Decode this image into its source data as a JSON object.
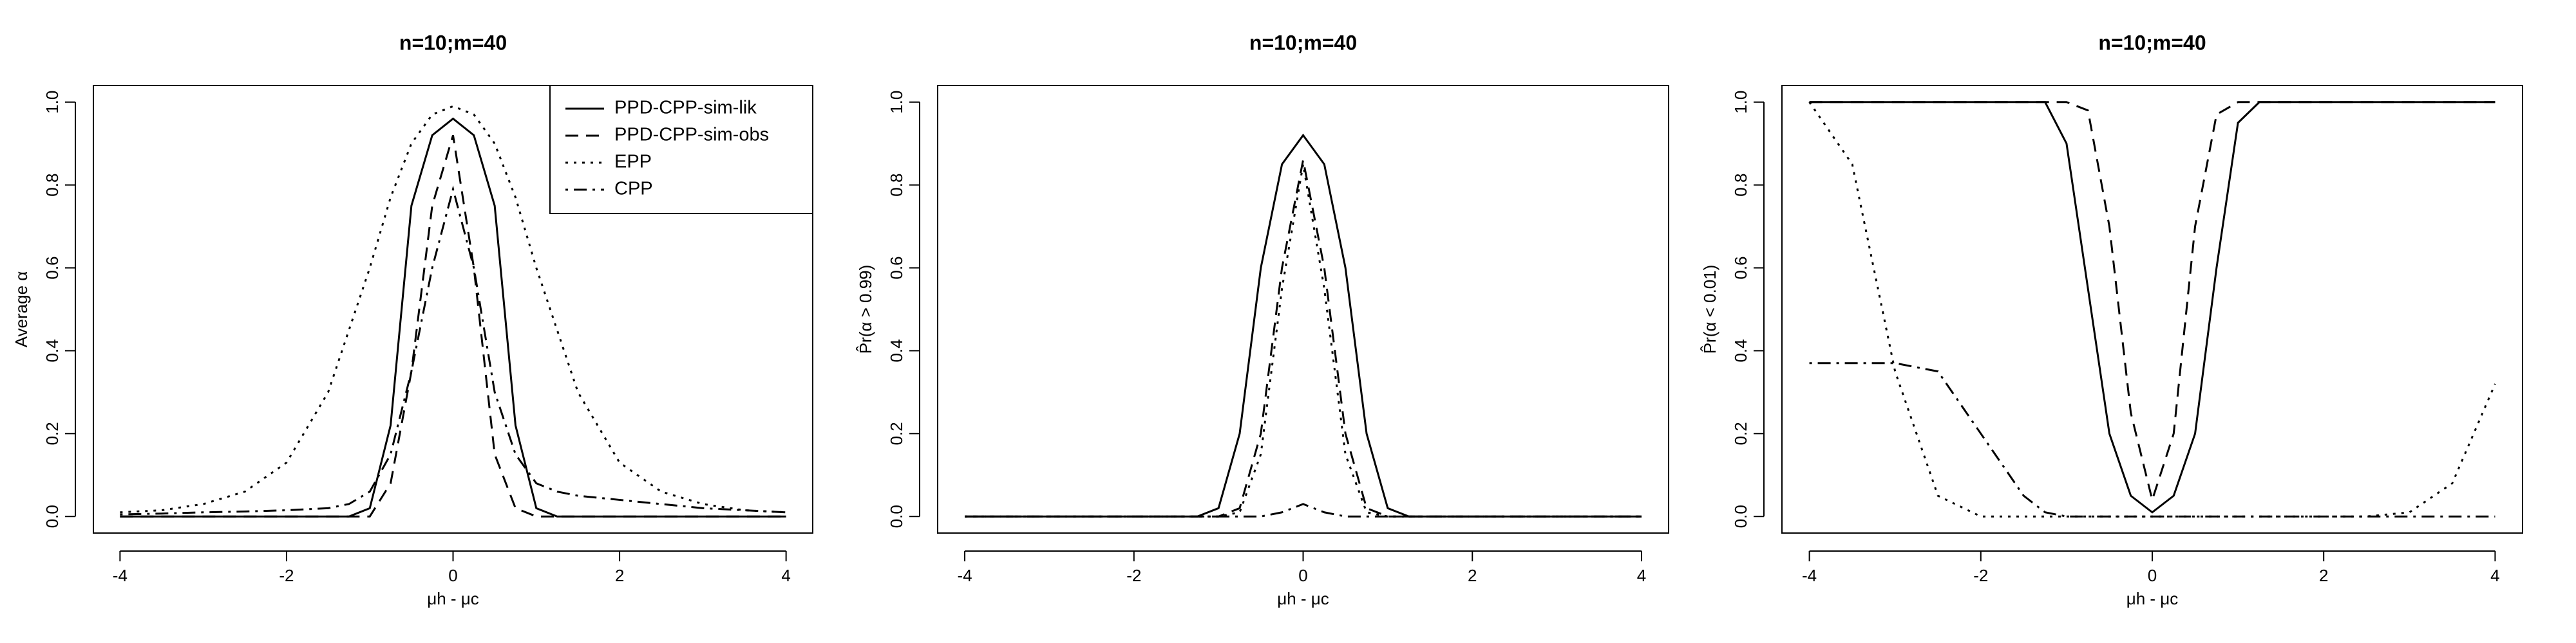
{
  "chart_data": [
    {
      "type": "line",
      "title": "n=10;m=40",
      "x_label": "μh - μc",
      "y_label": "Average α",
      "x": [
        -4,
        -3.5,
        -3,
        -2.5,
        -2,
        -1.5,
        -1.25,
        -1,
        -0.75,
        -0.5,
        -0.25,
        0,
        0.25,
        0.5,
        0.75,
        1,
        1.25,
        1.5,
        2,
        2.5,
        3,
        3.5,
        4
      ],
      "xlim": [
        -4.32,
        4.32
      ],
      "xticks": [
        -4,
        -2,
        0,
        2,
        4
      ],
      "ylim": [
        -0.04,
        1.04
      ],
      "yticks": [
        {
          "value": 0,
          "label": "0.0"
        },
        0.2,
        0.4,
        0.6,
        0.8,
        {
          "value": 1,
          "label": "1.0"
        }
      ],
      "legend": "top-right",
      "series": [
        {
          "name": "PPD-CPP-sim-lik",
          "color": "#000000",
          "dash": "solid",
          "values": [
            0,
            0,
            0,
            0,
            0,
            0,
            0,
            0.02,
            0.22,
            0.75,
            0.92,
            0.96,
            0.92,
            0.75,
            0.22,
            0.02,
            0,
            0,
            0,
            0,
            0,
            0,
            0
          ]
        },
        {
          "name": "PPD-CPP-sim-obs",
          "color": "#000000",
          "dash": "dashed",
          "values": [
            0,
            0,
            0,
            0,
            0,
            0,
            0,
            0,
            0.08,
            0.35,
            0.75,
            0.92,
            0.6,
            0.15,
            0.02,
            0,
            0,
            0,
            0,
            0,
            0,
            0,
            0
          ]
        },
        {
          "name": "EPP",
          "color": "#000000",
          "dash": "dotted",
          "values": [
            0.01,
            0.015,
            0.03,
            0.06,
            0.13,
            0.3,
            0.45,
            0.6,
            0.77,
            0.9,
            0.97,
            0.99,
            0.97,
            0.9,
            0.77,
            0.6,
            0.45,
            0.3,
            0.13,
            0.06,
            0.03,
            0.015,
            0.01
          ]
        },
        {
          "name": "CPP",
          "color": "#000000",
          "dash": "dashdot",
          "values": [
            0.005,
            0.007,
            0.01,
            0.012,
            0.015,
            0.02,
            0.03,
            0.06,
            0.15,
            0.35,
            0.6,
            0.79,
            0.6,
            0.3,
            0.15,
            0.08,
            0.06,
            0.05,
            0.04,
            0.03,
            0.02,
            0.015,
            0.01
          ]
        }
      ]
    },
    {
      "type": "line",
      "title": "n=10;m=40",
      "x_label": "μh - μc",
      "y_label": "P̂r(α > 0.99)",
      "x": [
        -4,
        -3.5,
        -3,
        -2.5,
        -2,
        -1.5,
        -1.25,
        -1,
        -0.75,
        -0.5,
        -0.25,
        0,
        0.25,
        0.5,
        0.75,
        1,
        1.25,
        1.5,
        2,
        2.5,
        3,
        3.5,
        4
      ],
      "xlim": [
        -4.32,
        4.32
      ],
      "xticks": [
        -4,
        -2,
        0,
        2,
        4
      ],
      "ylim": [
        -0.04,
        1.04
      ],
      "yticks": [
        {
          "value": 0,
          "label": "0.0"
        },
        0.2,
        0.4,
        0.6,
        0.8,
        {
          "value": 1,
          "label": "1.0"
        }
      ],
      "series": [
        {
          "name": "PPD-CPP-sim-lik",
          "color": "#000000",
          "dash": "solid",
          "values": [
            0,
            0,
            0,
            0,
            0,
            0,
            0,
            0.02,
            0.2,
            0.6,
            0.85,
            0.92,
            0.85,
            0.6,
            0.2,
            0.02,
            0,
            0,
            0,
            0,
            0,
            0,
            0
          ]
        },
        {
          "name": "PPD-CPP-sim-obs",
          "color": "#000000",
          "dash": "dashed",
          "values": [
            0,
            0,
            0,
            0,
            0,
            0,
            0,
            0,
            0.02,
            0.2,
            0.6,
            0.86,
            0.6,
            0.2,
            0.02,
            0,
            0,
            0,
            0,
            0,
            0,
            0,
            0
          ]
        },
        {
          "name": "EPP",
          "color": "#000000",
          "dash": "dotted",
          "values": [
            0,
            0,
            0,
            0,
            0,
            0,
            0,
            0,
            0.01,
            0.15,
            0.55,
            0.85,
            0.55,
            0.15,
            0.01,
            0,
            0,
            0,
            0,
            0,
            0,
            0,
            0
          ]
        },
        {
          "name": "CPP",
          "color": "#000000",
          "dash": "dashdot",
          "values": [
            0,
            0,
            0,
            0,
            0,
            0,
            0,
            0,
            0,
            0,
            0.01,
            0.03,
            0.01,
            0,
            0,
            0,
            0,
            0,
            0,
            0,
            0,
            0,
            0
          ]
        }
      ]
    },
    {
      "type": "line",
      "title": "n=10;m=40",
      "x_label": "μh - μc",
      "y_label": "P̂r(α < 0.01)",
      "x": [
        -4,
        -3.5,
        -3,
        -2.5,
        -2,
        -1.5,
        -1.25,
        -1,
        -0.75,
        -0.5,
        -0.25,
        0,
        0.25,
        0.5,
        0.75,
        1,
        1.25,
        1.5,
        2,
        2.5,
        3,
        3.5,
        4
      ],
      "xlim": [
        -4.32,
        4.32
      ],
      "xticks": [
        -4,
        -2,
        0,
        2,
        4
      ],
      "ylim": [
        -0.04,
        1.04
      ],
      "yticks": [
        {
          "value": 0,
          "label": "0.0"
        },
        0.2,
        0.4,
        0.6,
        0.8,
        {
          "value": 1,
          "label": "1.0"
        }
      ],
      "series": [
        {
          "name": "PPD-CPP-sim-lik",
          "color": "#000000",
          "dash": "solid",
          "values": [
            1,
            1,
            1,
            1,
            1,
            1,
            1,
            0.9,
            0.55,
            0.2,
            0.05,
            0.01,
            0.05,
            0.2,
            0.6,
            0.95,
            1,
            1,
            1,
            1,
            1,
            1,
            1
          ]
        },
        {
          "name": "PPD-CPP-sim-obs",
          "color": "#000000",
          "dash": "dashed",
          "values": [
            1,
            1,
            1,
            1,
            1,
            1,
            1,
            1,
            0.98,
            0.7,
            0.25,
            0.04,
            0.2,
            0.7,
            0.97,
            1,
            1,
            1,
            1,
            1,
            1,
            1,
            1
          ]
        },
        {
          "name": "EPP",
          "color": "#000000",
          "dash": "dotted",
          "values": [
            1,
            0.85,
            0.35,
            0.05,
            0,
            0,
            0,
            0,
            0,
            0,
            0,
            0,
            0,
            0,
            0,
            0,
            0,
            0,
            0,
            0,
            0.01,
            0.08,
            0.32
          ]
        },
        {
          "name": "CPP",
          "color": "#000000",
          "dash": "dashdot",
          "values": [
            0.37,
            0.37,
            0.37,
            0.35,
            0.2,
            0.05,
            0.01,
            0,
            0,
            0,
            0,
            0,
            0,
            0,
            0,
            0,
            0,
            0,
            0,
            0,
            0,
            0,
            0
          ]
        }
      ]
    }
  ]
}
